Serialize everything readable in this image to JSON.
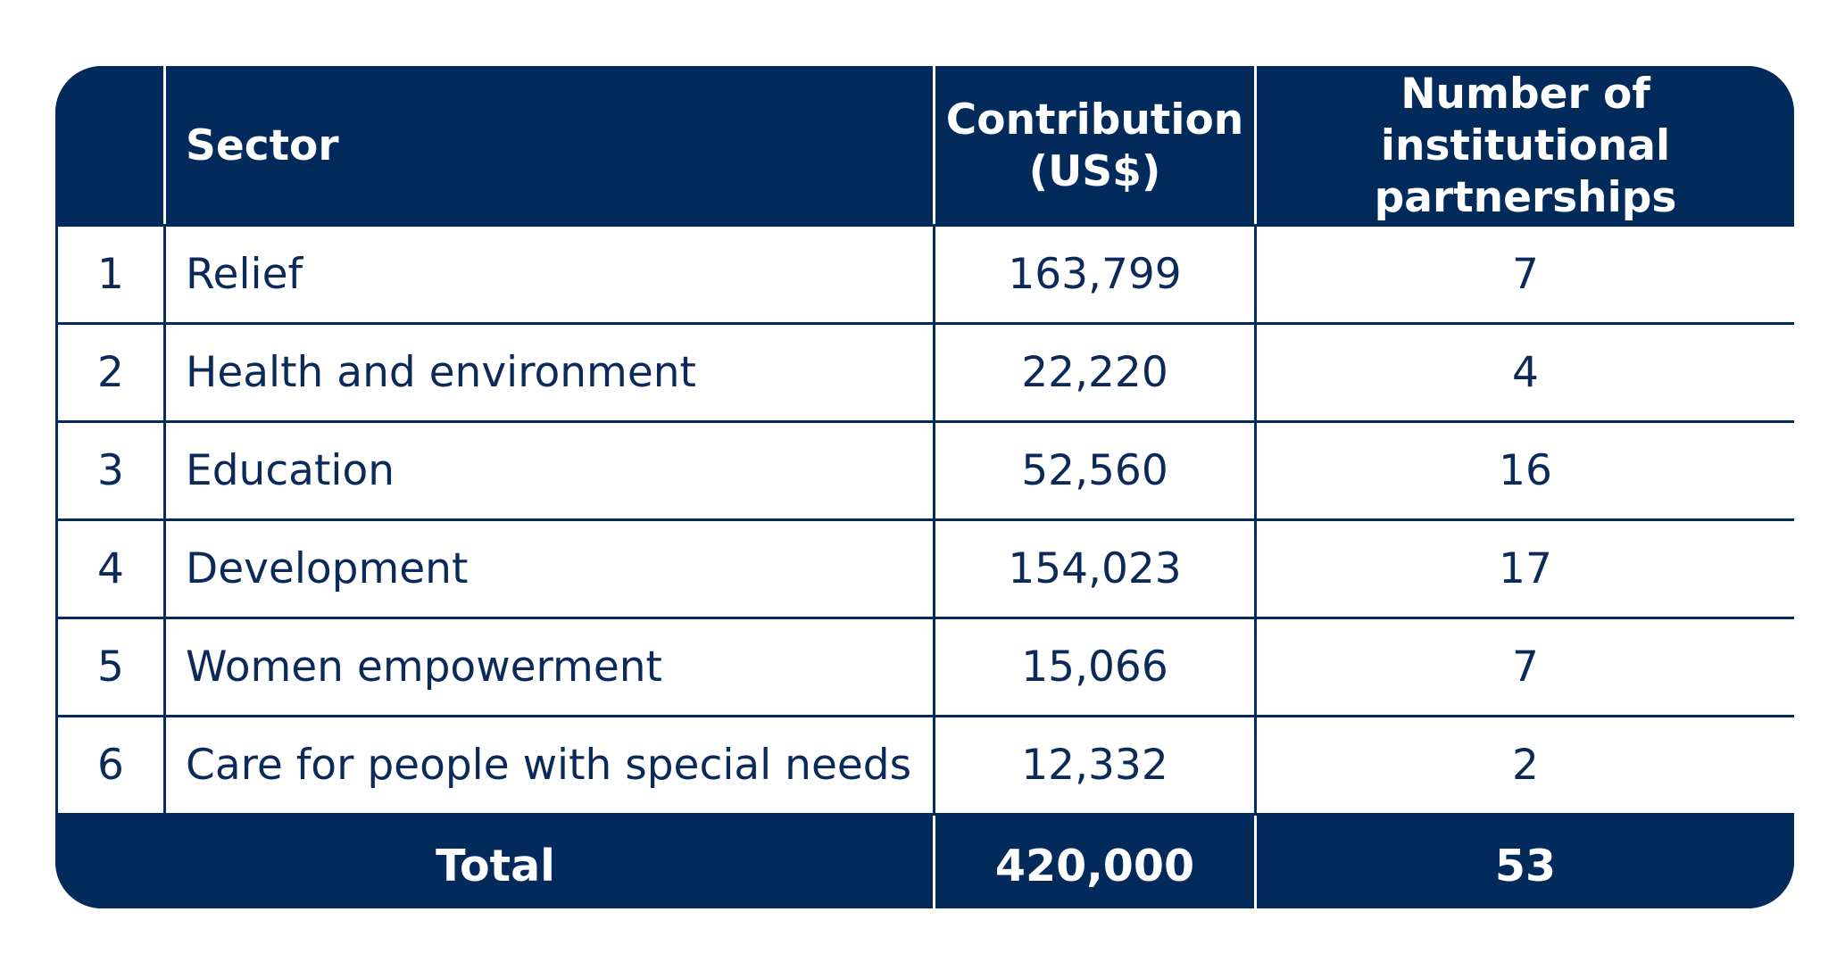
{
  "table": {
    "headers": {
      "sector": "Sector",
      "contribution": "Contribution (US$)",
      "partnerships": "Number of institutional partnerships"
    },
    "rows": [
      {
        "num": "1",
        "sector": "Relief",
        "contribution": "163,799",
        "partnerships": "7"
      },
      {
        "num": "2",
        "sector": "Health and environment",
        "contribution": "22,220",
        "partnerships": "4"
      },
      {
        "num": "3",
        "sector": "Education",
        "contribution": "52,560",
        "partnerships": "16"
      },
      {
        "num": "4",
        "sector": "Development",
        "contribution": "154,023",
        "partnerships": "17"
      },
      {
        "num": "5",
        "sector": "Women empowerment",
        "contribution": "15,066",
        "partnerships": "7"
      },
      {
        "num": "6",
        "sector": "Care for people with special needs",
        "contribution": "12,332",
        "partnerships": "2"
      }
    ],
    "total": {
      "label": "Total",
      "contribution": "420,000",
      "partnerships": "53"
    }
  }
}
